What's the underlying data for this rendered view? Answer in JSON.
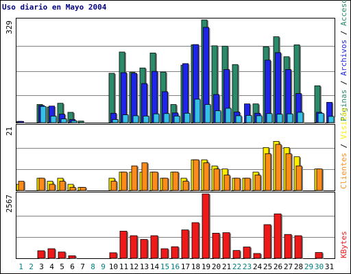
{
  "title": "Uso diario en Mayo 2004",
  "colors": {
    "pages": "#2a8a6a",
    "files": "#1f25e6",
    "hits": "#35c0e8",
    "visits": "#ffee00",
    "clients": "#ff8c1a",
    "kbytes": "#ee1a1a",
    "grid": "#808080",
    "panel_border": "#000000",
    "day_weekday": "#000000",
    "day_weekend": "#008080"
  },
  "legend": {
    "top": [
      {
        "text": "Páginas",
        "color": "#2a8a6a"
      },
      {
        "text": " / ",
        "color": "#000000"
      },
      {
        "text": "Archivos",
        "color": "#1f25e6"
      },
      {
        "text": " / ",
        "color": "#000000"
      },
      {
        "text": "Accesos",
        "color": "#2a8a6a"
      }
    ],
    "middle": [
      {
        "text": "Clientes",
        "color": "#ff8c1a"
      },
      {
        "text": " / ",
        "color": "#000000"
      },
      {
        "text": "Visitas",
        "color": "#ffee00"
      }
    ],
    "bottom": [
      {
        "text": "KBytes",
        "color": "#ee1a1a"
      }
    ]
  },
  "chart_data": {
    "type": "bar",
    "title": "Uso diario en Mayo 2004",
    "x": [
      1,
      2,
      3,
      4,
      5,
      6,
      7,
      8,
      9,
      10,
      11,
      12,
      13,
      14,
      15,
      16,
      17,
      18,
      19,
      20,
      21,
      22,
      23,
      24,
      25,
      26,
      27,
      28,
      29,
      30,
      31
    ],
    "weekend_days": [
      1,
      2,
      8,
      9,
      15,
      16,
      22,
      23,
      29,
      30
    ],
    "panels": [
      {
        "axis_max_label": "329",
        "ylim": [
          0,
          329
        ],
        "series": [
          {
            "name": "Páginas",
            "values": [
              4,
              0,
              58,
              50,
              62,
              33,
              5,
              0,
              0,
              158,
              226,
              161,
              175,
              223,
              162,
              58,
              184,
              249,
              329,
              246,
              245,
              186,
              0,
              60,
              243,
              275,
              211,
              249,
              0,
              118,
              0
            ]
          },
          {
            "name": "Archivos",
            "values": [
              4,
              0,
              55,
              53,
              27,
              10,
              0,
              0,
              0,
              30,
              160,
              158,
              125,
              164,
              99,
              31,
              189,
              250,
              305,
              90,
              170,
              34,
              60,
              30,
              200,
              224,
              170,
              93,
              0,
              33,
              65
            ]
          },
          {
            "name": "Accesos",
            "values": [
              0,
              0,
              52,
              21,
              12,
              6,
              0,
              0,
              0,
              10,
              25,
              22,
              21,
              28,
              29,
              21,
              30,
              75,
              58,
              38,
              46,
              22,
              23,
              22,
              29,
              27,
              28,
              33,
              0,
              30,
              20
            ]
          }
        ]
      },
      {
        "axis_max_label": "21",
        "ylim": [
          0,
          21
        ],
        "series": [
          {
            "name": "Visitas",
            "values": [
              2,
              0,
              4,
              3,
              4,
              2,
              1,
              0,
              0,
              4,
              6,
              6,
              6,
              6,
              4,
              6,
              4,
              10,
              10,
              8,
              7,
              4,
              4,
              6,
              14,
              16,
              14,
              11,
              0,
              7,
              0
            ]
          },
          {
            "name": "Clientes",
            "values": [
              3,
              0,
              4,
              2,
              3,
              1,
              1,
              0,
              0,
              3,
              6,
              8,
              9,
              6,
              4,
              6,
              3,
              10,
              9,
              7,
              5,
              4,
              4,
              5,
              12,
              15,
              12,
              8,
              0,
              7,
              0
            ]
          }
        ]
      },
      {
        "axis_max_label": "2567",
        "ylim": [
          0,
          2567
        ],
        "series": [
          {
            "name": "KBytes",
            "values": [
              0,
              0,
              300,
              381,
              250,
              100,
              0,
              0,
              0,
              220,
              1080,
              900,
              750,
              900,
              380,
              460,
              1130,
              1420,
              2567,
              1000,
              1020,
              310,
              450,
              190,
              1340,
              1770,
              950,
              900,
              0,
              230,
              0
            ]
          }
        ]
      }
    ]
  }
}
